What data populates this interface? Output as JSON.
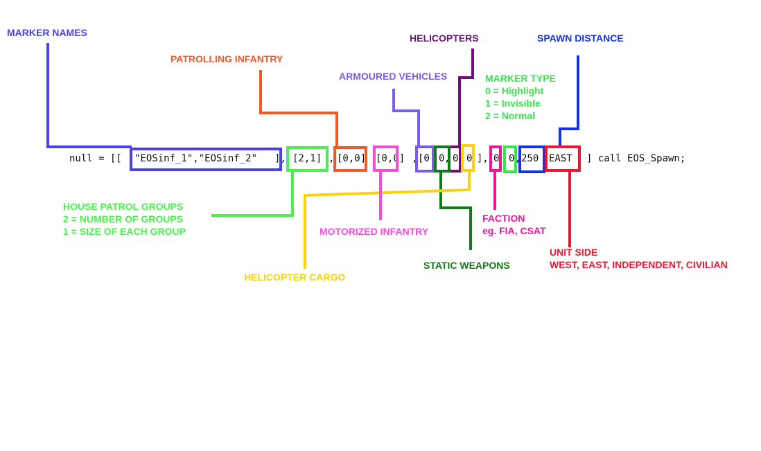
{
  "code_line": {
    "prefix": "null = [[",
    "marker_names": "\"EOSinf_1\",\"EOSinf_2\"",
    "sep1": "],",
    "house_patrol": "[2,1]",
    "sep2": ",",
    "patrolling_infantry": "[0,0]",
    "sep3": ",",
    "motorized_infantry": "[0,0]",
    "sep4": ",",
    "armoured_vehicles": "[0",
    "sep5": ",",
    "static_weapons": "0",
    "sep6": ",",
    "helicopters": "0",
    "sep7": ",",
    "helicopter_cargo": "0",
    "sep8": "],[",
    "faction": "0",
    "sep9": ",",
    "marker_type": "0",
    "sep10": ",",
    "spawn_distance": "250",
    "sep11": ",",
    "unit_side": "EAST",
    "suffix": "] call EOS_Spawn;"
  },
  "labels": {
    "marker_names": "MARKER NAMES",
    "patrolling_infantry": "PATROLLING INFANTRY",
    "armoured_vehicles": "ARMOURED VEHICLES",
    "helicopters": "HELICOPTERS",
    "spawn_distance": "SPAWN DISTANCE",
    "marker_type": [
      "MARKER TYPE",
      "0 = Highlight",
      "1 = Invisible",
      "2 = Normal"
    ],
    "house_patrol": [
      "HOUSE PATROL GROUPS",
      "2 = NUMBER OF GROUPS",
      "1 = SIZE OF EACH GROUP"
    ],
    "motorized_infantry": "MOTORIZED INFANTRY",
    "faction": [
      "FACTION",
      "eg. FIA, CSAT"
    ],
    "unit_side": [
      "UNIT SIDE",
      "WEST, EAST, INDEPENDENT, CIVILIAN"
    ],
    "static_weapons": "STATIC WEAPONS",
    "helicopter_cargo": "HELICOPTER CARGO"
  },
  "colors": {
    "marker_names": "#4b3ff0",
    "patrolling_infantry": "#f05a28",
    "armoured_vehicles": "#7b5cf0",
    "helicopters": "#700f7a",
    "spawn_distance": "#1533e6",
    "marker_type": "#35e84a",
    "house_patrol": "#4cf04e",
    "motorized_infantry": "#ef4fd8",
    "faction": "#f0149b",
    "unit_side": "#ee1532",
    "static_weapons": "#117a1b",
    "helicopter_cargo": "#f8d30f"
  }
}
